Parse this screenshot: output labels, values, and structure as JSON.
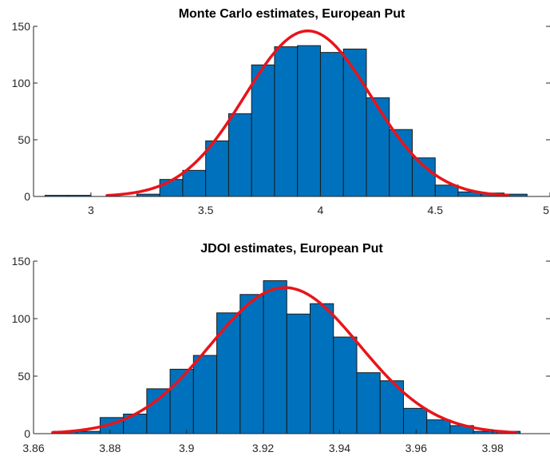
{
  "chart_data": [
    {
      "type": "bar",
      "title": "Monte Carlo estimates, European Put",
      "xlabel": "",
      "ylabel": "",
      "xlim": [
        2.75,
        5.0
      ],
      "ylim": [
        0,
        150
      ],
      "xticks": [
        3,
        3.5,
        4,
        4.5,
        5
      ],
      "xtick_labels": [
        "3",
        "3.5",
        "4",
        "4.5",
        "5"
      ],
      "yticks": [
        0,
        50,
        100,
        150
      ],
      "ytick_labels": [
        "0",
        "50",
        "100",
        "150"
      ],
      "bin_edges": [
        2.8,
        2.9,
        3.0,
        3.1,
        3.2,
        3.3,
        3.4,
        3.5,
        3.6,
        3.7,
        3.8,
        3.9,
        4.0,
        4.1,
        4.2,
        4.3,
        4.4,
        4.5,
        4.6,
        4.7,
        4.8,
        4.9,
        5.0
      ],
      "values": [
        1,
        1,
        0,
        0,
        2,
        15,
        23,
        49,
        73,
        116,
        132,
        133,
        127,
        130,
        87,
        59,
        34,
        10,
        4,
        3,
        2,
        0
      ],
      "fit_curve": {
        "type": "normal",
        "mean": 3.945,
        "sd": 0.275,
        "peak": 146,
        "x_range": [
          3.07,
          4.82
        ]
      },
      "colors": {
        "bars": "#0072BD",
        "curve": "#E8141A"
      },
      "grid": false
    },
    {
      "type": "bar",
      "title": "JDOI estimates, European Put",
      "xlabel": "",
      "ylabel": "",
      "xlim": [
        3.86,
        3.995
      ],
      "ylim": [
        0,
        150
      ],
      "xticks": [
        3.86,
        3.88,
        3.9,
        3.92,
        3.94,
        3.96,
        3.98
      ],
      "xtick_labels": [
        "3.86",
        "3.88",
        "3.9",
        "3.92",
        "3.94",
        "3.96",
        "3.98"
      ],
      "yticks": [
        0,
        50,
        100,
        150
      ],
      "ytick_labels": [
        "0",
        "50",
        "100",
        "150"
      ],
      "bin_edges": [
        3.8652,
        3.8713,
        3.8774,
        3.8835,
        3.8896,
        3.8957,
        3.9018,
        3.9079,
        3.914,
        3.9201,
        3.9262,
        3.9323,
        3.9384,
        3.9445,
        3.9506,
        3.9567,
        3.9628,
        3.9689,
        3.975,
        3.9811,
        3.9872,
        3.9933
      ],
      "values": [
        2,
        2,
        14,
        17,
        39,
        56,
        68,
        105,
        121,
        133,
        104,
        113,
        84,
        53,
        46,
        22,
        12,
        7,
        2,
        2,
        0
      ],
      "fit_curve": {
        "type": "normal",
        "mean": 3.9257,
        "sd": 0.0195,
        "peak": 127,
        "x_range": [
          3.865,
          3.986
        ]
      },
      "colors": {
        "bars": "#0072BD",
        "curve": "#E8141A"
      },
      "grid": false
    }
  ]
}
